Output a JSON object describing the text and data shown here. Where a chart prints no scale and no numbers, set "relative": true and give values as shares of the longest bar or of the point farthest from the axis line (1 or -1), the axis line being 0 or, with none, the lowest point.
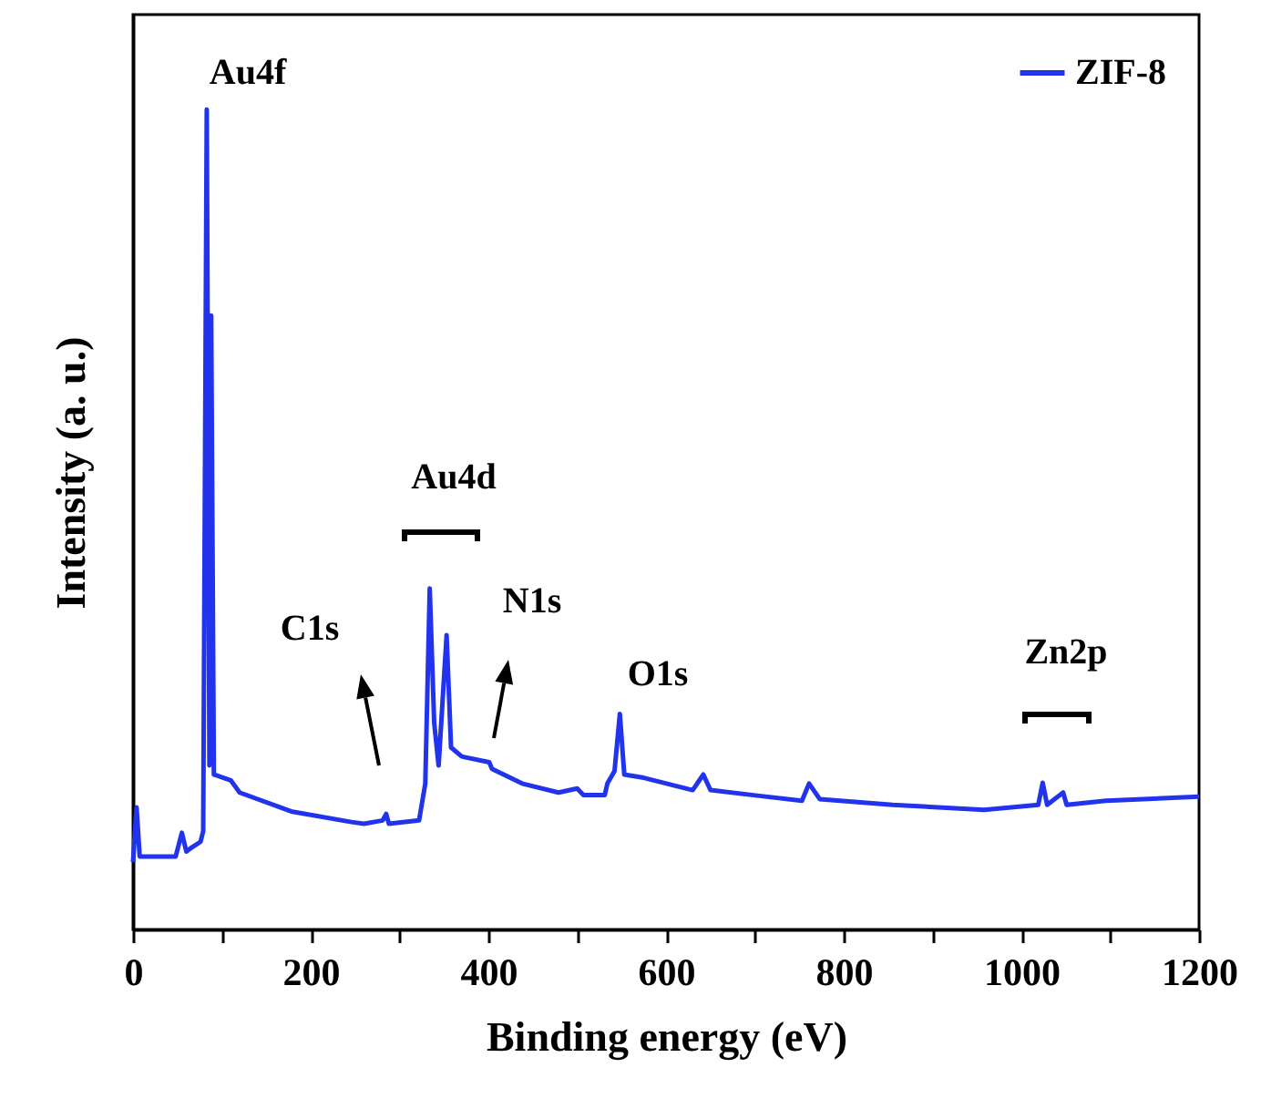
{
  "chart_data": {
    "type": "line",
    "relative": true,
    "xlabel": "Binding energy (eV)",
    "ylabel": "Intensity (a. u.)",
    "xlim": [
      0,
      1200
    ],
    "xticks": [
      0,
      {
        "value": 100,
        "label": null
      },
      200,
      {
        "value": 300,
        "label": null
      },
      400,
      {
        "value": 500,
        "label": null
      },
      600,
      {
        "value": 700,
        "label": null
      },
      800,
      {
        "value": 900,
        "label": null
      },
      1000,
      {
        "value": 1100,
        "label": null
      },
      1200
    ],
    "legend": "top right",
    "grid": false,
    "annotations": [
      "Au4f",
      "Au4d",
      "C1s",
      "N1s",
      "O1s",
      "Zn2p"
    ],
    "series": [
      {
        "name": "ZIF-8",
        "color": "#2233ee",
        "x": [
          0,
          4,
          7.5,
          48,
          55,
          60,
          66,
          76,
          79,
          83,
          86,
          88,
          91,
          110,
          120,
          178,
          246,
          260,
          281,
          285,
          288,
          322,
          329,
          334,
          339,
          344,
          353,
          358,
          370,
          401,
          404,
          438,
          479,
          500,
          507,
          531,
          534,
          542,
          548,
          553,
          575,
          630,
          642,
          650,
          705,
          753,
          761,
          773,
          855,
          958,
          1019,
          1024,
          1029,
          1047,
          1051,
          1095,
          1200
        ],
        "values": [
          0.082,
          0.149,
          0.089,
          0.089,
          0.118,
          0.095,
          0.1,
          0.107,
          0.12,
          1.0,
          0.2,
          0.749,
          0.189,
          0.182,
          0.167,
          0.144,
          0.131,
          0.129,
          0.133,
          0.141,
          0.129,
          0.133,
          0.178,
          0.416,
          0.252,
          0.2,
          0.359,
          0.222,
          0.211,
          0.204,
          0.196,
          0.178,
          0.167,
          0.172,
          0.164,
          0.164,
          0.178,
          0.193,
          0.263,
          0.189,
          0.185,
          0.17,
          0.189,
          0.17,
          0.163,
          0.157,
          0.178,
          0.159,
          0.152,
          0.146,
          0.152,
          0.179,
          0.152,
          0.167,
          0.152,
          0.157,
          0.162
        ]
      }
    ]
  }
}
